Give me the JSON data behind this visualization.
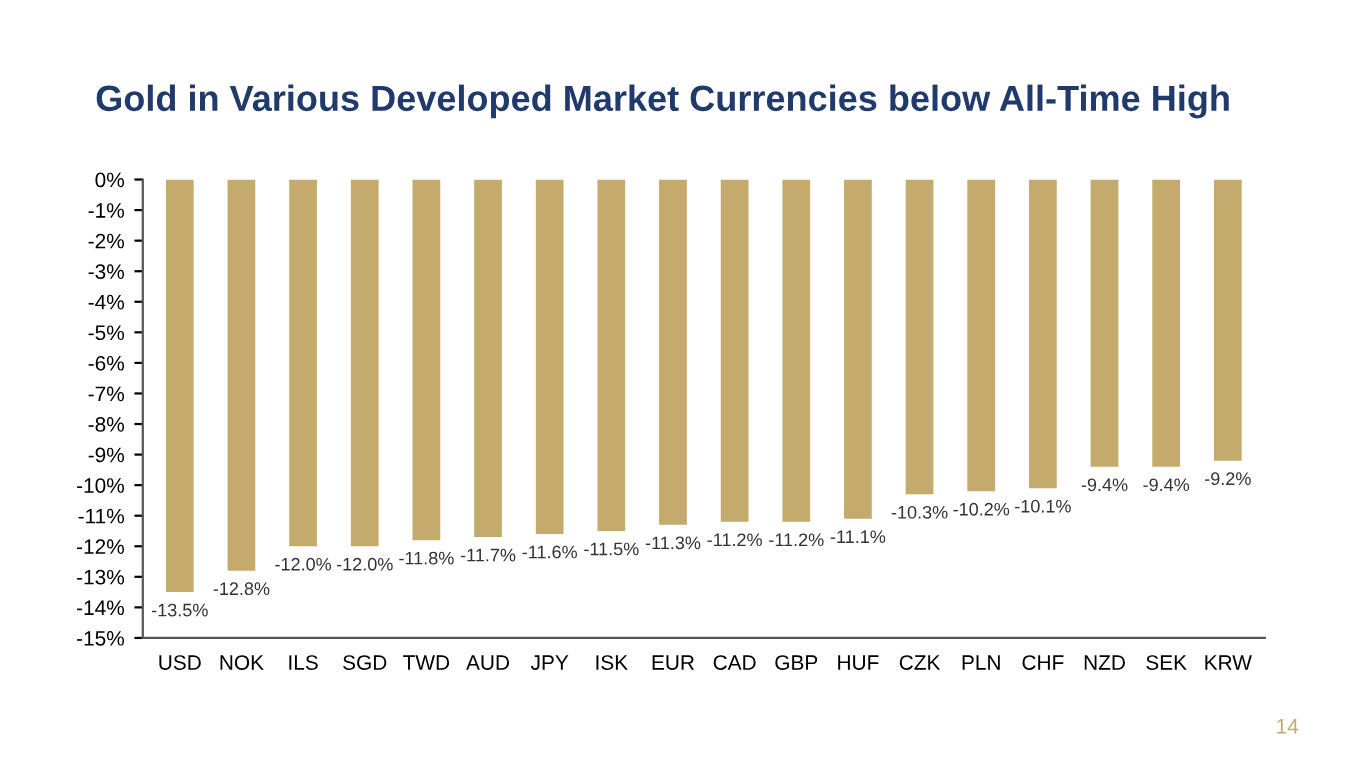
{
  "chart_data": {
    "type": "bar",
    "title": "Gold in Various Developed Market Currencies below All-Time High",
    "categories": [
      "USD",
      "NOK",
      "ILS",
      "SGD",
      "TWD",
      "AUD",
      "JPY",
      "ISK",
      "EUR",
      "CAD",
      "GBP",
      "HUF",
      "CZK",
      "PLN",
      "CHF",
      "NZD",
      "SEK",
      "KRW"
    ],
    "values": [
      -13.5,
      -12.8,
      -12.0,
      -12.0,
      -11.8,
      -11.7,
      -11.6,
      -11.5,
      -11.3,
      -11.2,
      -11.2,
      -11.1,
      -10.3,
      -10.2,
      -10.1,
      -9.4,
      -9.4,
      -9.2
    ],
    "value_labels": [
      "-13.5%",
      "-12.8%",
      "-12.0%",
      "-12.0%",
      "-11.8%",
      "-11.7%",
      "-11.6%",
      "-11.5%",
      "-11.3%",
      "-11.2%",
      "-11.2%",
      "-11.1%",
      "-10.3%",
      "-10.2%",
      "-10.1%",
      "-9.4%",
      "-9.4%",
      "-9.2%"
    ],
    "color": "#c4aa6c",
    "ylim": [
      -15,
      0
    ],
    "yticks": [
      {
        "value": 0,
        "label": "0%"
      },
      {
        "value": -1,
        "label": "-1%"
      },
      {
        "value": -2,
        "label": "-2%"
      },
      {
        "value": -3,
        "label": "-3%"
      },
      {
        "value": -4,
        "label": "-4%"
      },
      {
        "value": -5,
        "label": "-5%"
      },
      {
        "value": -6,
        "label": "-6%"
      },
      {
        "value": -7,
        "label": "-7%"
      },
      {
        "value": -8,
        "label": "-8%"
      },
      {
        "value": -9,
        "label": "-9%"
      },
      {
        "value": -10,
        "label": "-10%"
      },
      {
        "value": -11,
        "label": "-11%"
      },
      {
        "value": -12,
        "label": "-12%"
      },
      {
        "value": -13,
        "label": "-13%"
      },
      {
        "value": -14,
        "label": "-14%"
      },
      {
        "value": -15,
        "label": "-15%"
      }
    ],
    "annotations": [
      "14"
    ]
  }
}
